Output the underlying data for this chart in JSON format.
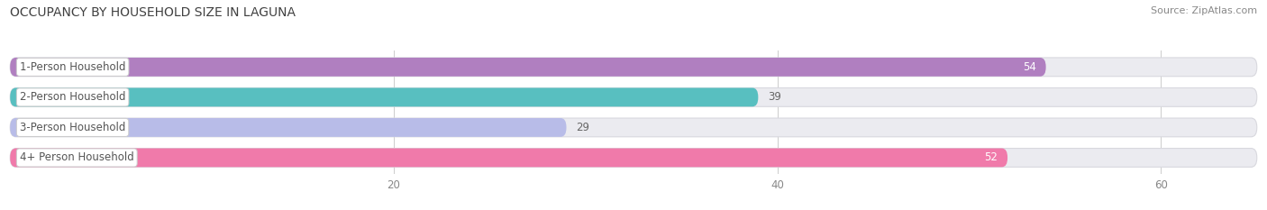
{
  "title": "OCCUPANCY BY HOUSEHOLD SIZE IN LAGUNA",
  "source": "Source: ZipAtlas.com",
  "categories": [
    "1-Person Household",
    "2-Person Household",
    "3-Person Household",
    "4+ Person Household"
  ],
  "values": [
    54,
    39,
    29,
    52
  ],
  "bar_colors": [
    "#b07fc0",
    "#58bfc0",
    "#b8bce8",
    "#f07aaa"
  ],
  "bar_bg_color": "#ebebf0",
  "xlim": [
    0,
    65
  ],
  "xticks": [
    20,
    40,
    60
  ],
  "value_inside": [
    true,
    false,
    false,
    true
  ],
  "figsize": [
    14.06,
    2.33
  ],
  "dpi": 100,
  "title_fontsize": 10,
  "source_fontsize": 8,
  "label_fontsize": 8.5,
  "value_fontsize": 8.5,
  "tick_fontsize": 8.5
}
